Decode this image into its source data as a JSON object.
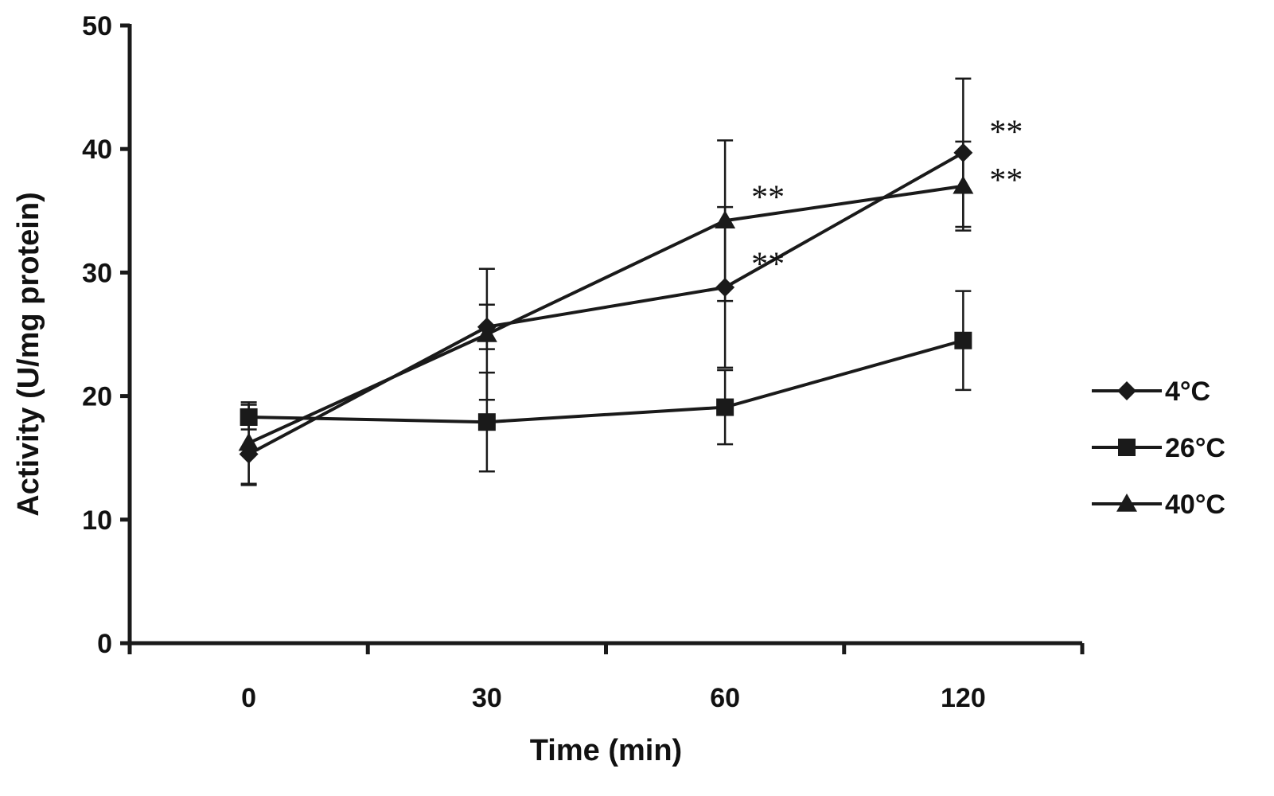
{
  "chart_data": {
    "type": "line",
    "title": "",
    "xlabel": "Time (min)",
    "ylabel": "Activity (U/mg protein)",
    "categories": [
      "0",
      "30",
      "60",
      "120"
    ],
    "ylim": [
      0,
      50
    ],
    "yticks": [
      0,
      10,
      20,
      30,
      40,
      50
    ],
    "grid": false,
    "legend_position": "right",
    "series": [
      {
        "name": "4°C",
        "marker": "diamond",
        "values": [
          15.3,
          25.6,
          28.8,
          39.7
        ],
        "errors": [
          2.5,
          1.8,
          6.5,
          6.0
        ]
      },
      {
        "name": "26°C",
        "marker": "square",
        "values": [
          18.3,
          17.9,
          19.1,
          24.5
        ],
        "errors": [
          1.0,
          4.0,
          3.0,
          4.0
        ]
      },
      {
        "name": "40°C",
        "marker": "triangle",
        "values": [
          16.2,
          25.0,
          34.2,
          37.0
        ],
        "errors": [
          3.3,
          5.3,
          6.5,
          3.6
        ]
      }
    ],
    "annotations": [
      {
        "text": "**",
        "category": "60",
        "value": 36.5
      },
      {
        "text": "**",
        "category": "60",
        "value": 31.1
      },
      {
        "text": "**",
        "category": "120",
        "value": 41.8
      },
      {
        "text": "**",
        "category": "120",
        "value": 37.9
      }
    ]
  }
}
